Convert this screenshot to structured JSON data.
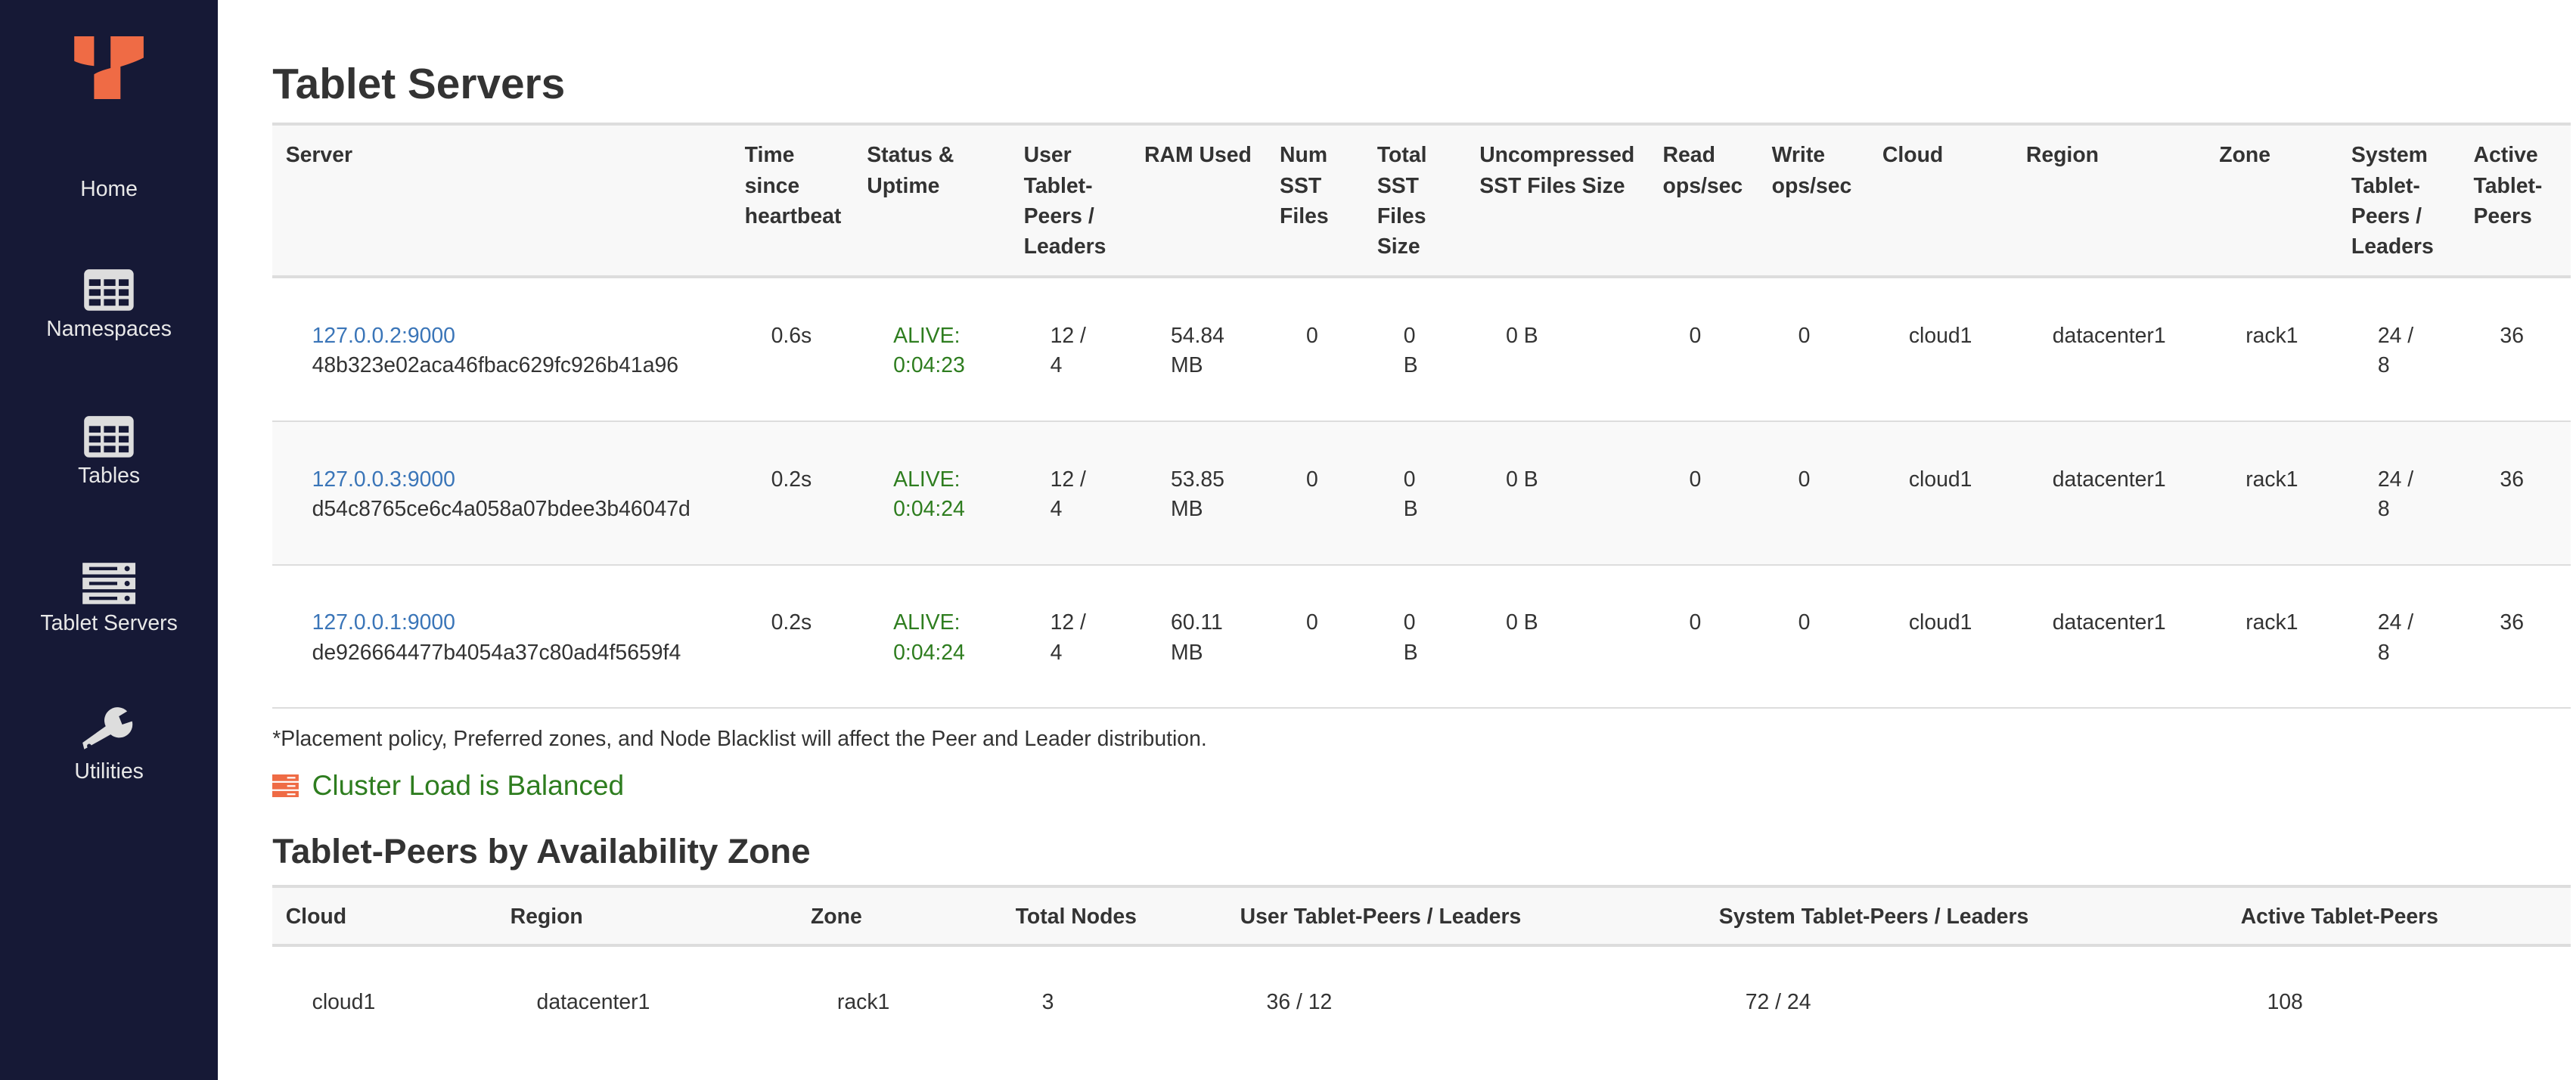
{
  "brand": {
    "logo": "yugabyte-logo",
    "accent": "#ef6b45",
    "sidebar_bg": "#161936"
  },
  "sidebar": {
    "items": [
      {
        "label": "Home",
        "icon": "home"
      },
      {
        "label": "Namespaces",
        "icon": "table-icon"
      },
      {
        "label": "Tables",
        "icon": "table-icon"
      },
      {
        "label": "Tablet Servers",
        "icon": "server-icon"
      },
      {
        "label": "Utilities",
        "icon": "wrench-icon"
      }
    ]
  },
  "page": {
    "title": "Tablet Servers"
  },
  "servers_table": {
    "headers": [
      "Server",
      "Time since heartbeat",
      "Status & Uptime",
      "User Tablet-Peers / Leaders",
      "RAM Used",
      "Num SST Files",
      "Total SST Files Size",
      "Uncompressed SST Files Size",
      "Read ops/sec",
      "Write ops/sec",
      "Cloud",
      "Region",
      "Zone",
      "System Tablet-Peers / Leaders",
      "Active Tablet-Peers"
    ],
    "rows": [
      {
        "address": "127.0.0.2:9000",
        "uuid": "48b323e02aca46fbac629fc926b41a96",
        "heartbeat": "0.6s",
        "status": "ALIVE:",
        "uptime": "0:04:23",
        "user_peers": "12 /",
        "user_leaders": "4",
        "ram": "54.84",
        "ram_unit": "MB",
        "num_sst": "0",
        "total_sst": "0",
        "total_sst_unit": "B",
        "uncompressed": "0 B",
        "read": "0",
        "write": "0",
        "cloud": "cloud1",
        "region": "datacenter1",
        "zone": "rack1",
        "sys_peers": "24 /",
        "sys_leaders": "8",
        "active": "36"
      },
      {
        "address": "127.0.0.3:9000",
        "uuid": "d54c8765ce6c4a058a07bdee3b46047d",
        "heartbeat": "0.2s",
        "status": "ALIVE:",
        "uptime": "0:04:24",
        "user_peers": "12 /",
        "user_leaders": "4",
        "ram": "53.85",
        "ram_unit": "MB",
        "num_sst": "0",
        "total_sst": "0",
        "total_sst_unit": "B",
        "uncompressed": "0 B",
        "read": "0",
        "write": "0",
        "cloud": "cloud1",
        "region": "datacenter1",
        "zone": "rack1",
        "sys_peers": "24 /",
        "sys_leaders": "8",
        "active": "36"
      },
      {
        "address": "127.0.0.1:9000",
        "uuid": "de926664477b4054a37c80ad4f5659f4",
        "heartbeat": "0.2s",
        "status": "ALIVE:",
        "uptime": "0:04:24",
        "user_peers": "12 /",
        "user_leaders": "4",
        "ram": "60.11",
        "ram_unit": "MB",
        "num_sst": "0",
        "total_sst": "0",
        "total_sst_unit": "B",
        "uncompressed": "0 B",
        "read": "0",
        "write": "0",
        "cloud": "cloud1",
        "region": "datacenter1",
        "zone": "rack1",
        "sys_peers": "24 /",
        "sys_leaders": "8",
        "active": "36"
      }
    ]
  },
  "note": "*Placement policy, Preferred zones, and Node Blacklist will affect the Peer and Leader distribution.",
  "balance_status": {
    "label": "Cluster Load is Balanced",
    "icon": "server-icon",
    "color": "#2e7d1f"
  },
  "zones": {
    "title": "Tablet-Peers by Availability Zone",
    "headers": [
      "Cloud",
      "Region",
      "Zone",
      "Total Nodes",
      "User Tablet-Peers / Leaders",
      "System Tablet-Peers / Leaders",
      "Active Tablet-Peers"
    ],
    "rows": [
      [
        "cloud1",
        "datacenter1",
        "rack1",
        "3",
        "36 / 12",
        "72 / 24",
        "108"
      ]
    ]
  }
}
